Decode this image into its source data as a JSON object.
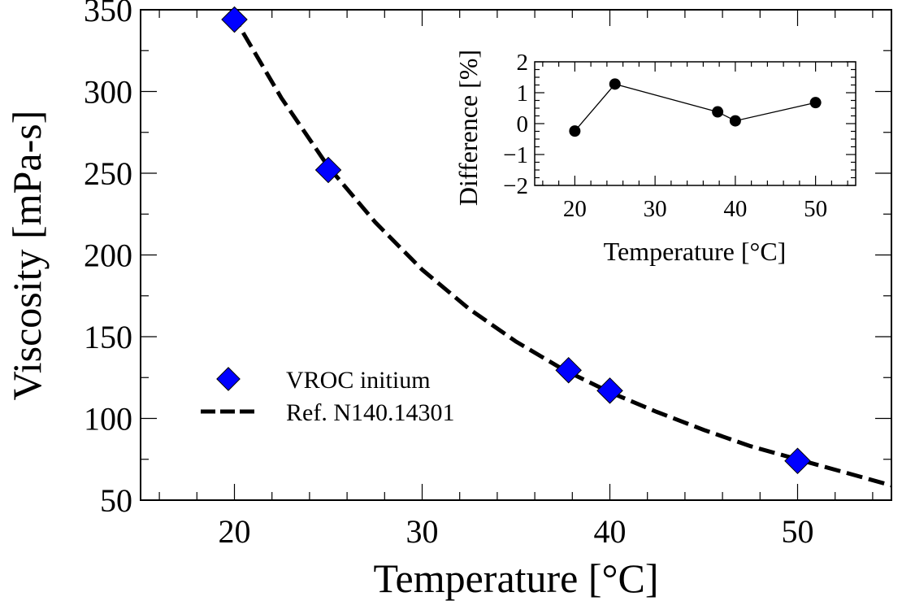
{
  "chart_data": [
    {
      "type": "scatter",
      "xlabel": "Temperature [°C]",
      "ylabel": "Viscosity [mPa-s]",
      "xlim": [
        15,
        55
      ],
      "ylim": [
        50,
        350
      ],
      "xticks": [
        20,
        30,
        40,
        50
      ],
      "yticks": [
        50,
        100,
        150,
        200,
        250,
        300,
        350
      ],
      "grid": false,
      "legend": "center-left",
      "series": [
        {
          "name": "VROC initium",
          "kind": "scatter",
          "marker": "diamond",
          "color": "#0000ff",
          "x": [
            20,
            25,
            37.8,
            40,
            50
          ],
          "y": [
            344,
            252,
            129.5,
            117,
            74
          ]
        },
        {
          "name": "Ref. N140.14301",
          "kind": "line",
          "style": "dashed",
          "color": "#000000",
          "x": [
            19,
            20,
            22.5,
            25,
            27.5,
            30,
            32.5,
            35,
            37.5,
            40,
            42.5,
            45,
            47.5,
            50,
            52.5,
            55
          ],
          "y": [
            358,
            345,
            296,
            254,
            220,
            191,
            167,
            147,
            130,
            116,
            104,
            93,
            83,
            75,
            67,
            59
          ]
        }
      ]
    },
    {
      "type": "line",
      "xlabel": "Temperature [°C]",
      "ylabel": "Difference [%]",
      "xlim": [
        15,
        55
      ],
      "ylim": [
        -2,
        2
      ],
      "xticks": [
        20,
        30,
        40,
        50
      ],
      "yticks": [
        -2,
        -1,
        0,
        1,
        2
      ],
      "ytick_labels": [
        "−2",
        "−1",
        "0",
        "1",
        "2"
      ],
      "grid": false,
      "series": [
        {
          "marker": "circle",
          "color": "#000000",
          "x": [
            20,
            25,
            37.8,
            40,
            50
          ],
          "y": [
            -0.24,
            1.28,
            0.38,
            0.09,
            0.68
          ]
        }
      ]
    }
  ]
}
